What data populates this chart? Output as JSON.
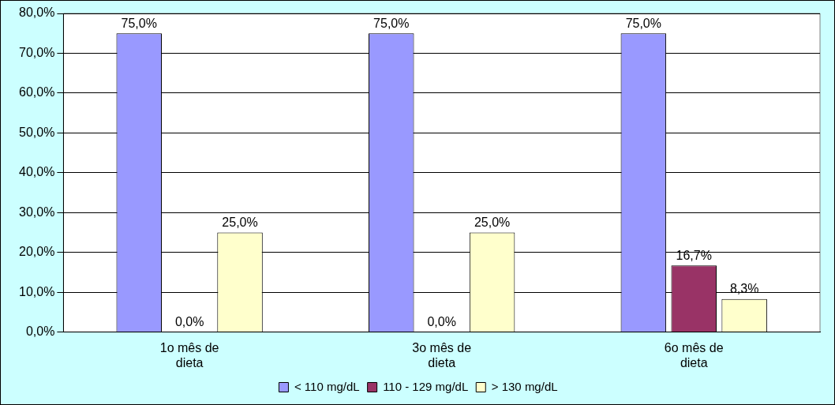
{
  "chart_data": {
    "type": "bar",
    "categories": [
      "1o mês de dieta",
      "3o mês de dieta",
      "6o mês de dieta"
    ],
    "series": [
      {
        "name": "< 110 mg/dL",
        "color": "#9999ff",
        "values": [
          75.0,
          75.0,
          75.0
        ],
        "value_labels": [
          "75,0%",
          "75,0%",
          "75,0%"
        ]
      },
      {
        "name": "110 - 129 mg/dL",
        "color": "#993366",
        "values": [
          0.0,
          0.0,
          16.7
        ],
        "value_labels": [
          "0,0%",
          "0,0%",
          "16,7%"
        ]
      },
      {
        "name": "> 130 mg/dL",
        "color": "#ffffcc",
        "values": [
          25.0,
          25.0,
          8.3
        ],
        "value_labels": [
          "25,0%",
          "25,0%",
          "8,3%"
        ]
      }
    ],
    "ylim": [
      0,
      80
    ],
    "yticks": [
      {
        "value": 0,
        "label": "0,0%"
      },
      {
        "value": 10,
        "label": "10,0%"
      },
      {
        "value": 20,
        "label": "20,0%"
      },
      {
        "value": 30,
        "label": "30,0%"
      },
      {
        "value": 40,
        "label": "40,0%"
      },
      {
        "value": 50,
        "label": "50,0%"
      },
      {
        "value": 60,
        "label": "60,0%"
      },
      {
        "value": 70,
        "label": "70,0%"
      },
      {
        "value": 80,
        "label": "80,0%"
      }
    ],
    "grid": "y",
    "legend": "bottom"
  }
}
